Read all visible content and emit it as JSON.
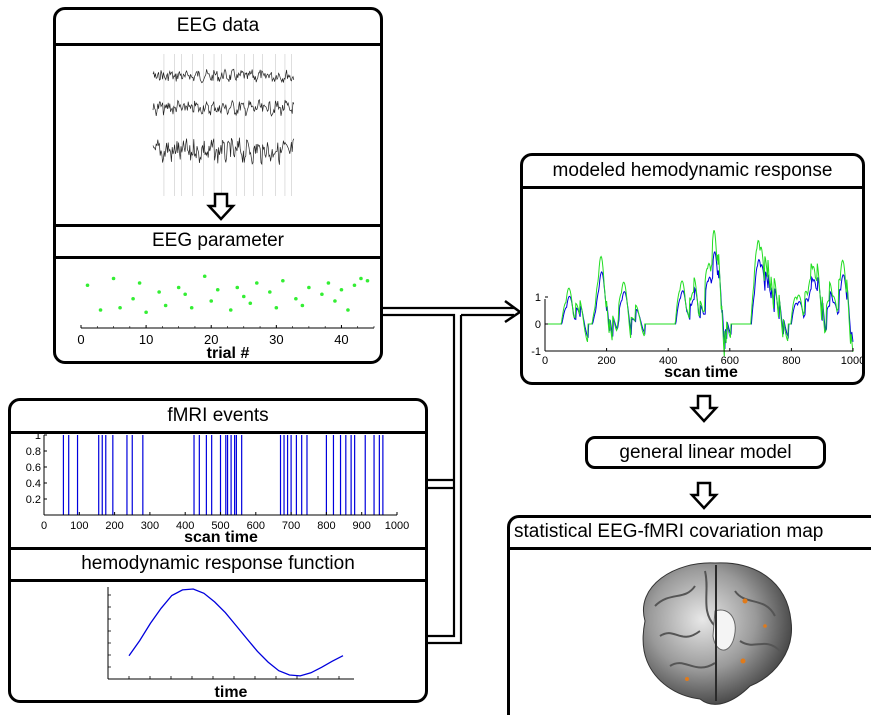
{
  "eeg_panel": {
    "title": "EEG data",
    "param_title": "EEG parameter",
    "trial_axis": {
      "label": "trial #",
      "ticks": [
        "0",
        "10",
        "20",
        "30",
        "40"
      ],
      "range": [
        0,
        45
      ]
    }
  },
  "fmri_panel": {
    "title": "fMRI events",
    "xlabel": "scan time",
    "xticks": [
      "0",
      "100",
      "200",
      "300",
      "400",
      "500",
      "600",
      "700",
      "800",
      "900",
      "1000"
    ],
    "yticks": [
      "0.2",
      "0.4",
      "0.6",
      "0.8",
      "1"
    ],
    "xlim": [
      0,
      1000
    ],
    "ylim": [
      0,
      1
    ]
  },
  "hrf_panel": {
    "title": "hemodynamic response function",
    "xlabel": "time"
  },
  "model_panel": {
    "title": "modeled hemodynamic response",
    "xlabel": "scan time",
    "xticks": [
      "0",
      "200",
      "400",
      "600",
      "800",
      "1000"
    ],
    "yticks": [
      "1",
      "0",
      "-1"
    ],
    "xlim": [
      0,
      1000
    ],
    "ylim": [
      -1,
      1
    ]
  },
  "glm_box": {
    "label": "general linear model"
  },
  "map_panel": {
    "title": "statistical EEG-fMRI covariation map"
  },
  "colors": {
    "eeg_points": "#33ee33",
    "events": "#0000dd",
    "hrf": "#0000dd",
    "model_blue": "#0000dd",
    "model_green": "#22dd22"
  },
  "chart_data": [
    {
      "type": "scatter",
      "name": "EEG parameter",
      "x": [
        1,
        3,
        5,
        6,
        8,
        9,
        10,
        12,
        13,
        15,
        16,
        17,
        19,
        20,
        21,
        23,
        24,
        25,
        26,
        27,
        29,
        30,
        31,
        33,
        34,
        35,
        37,
        38,
        39,
        40,
        41,
        42,
        43,
        44
      ],
      "y": [
        0.75,
        0.2,
        0.9,
        0.25,
        0.45,
        0.8,
        0.15,
        0.6,
        0.3,
        0.7,
        0.55,
        0.25,
        0.95,
        0.4,
        0.65,
        0.2,
        0.7,
        0.5,
        0.35,
        0.8,
        0.6,
        0.25,
        0.85,
        0.45,
        0.3,
        0.7,
        0.55,
        0.8,
        0.4,
        0.65,
        0.2,
        0.75,
        0.9,
        0.85
      ],
      "xlabel": "trial #",
      "xlim": [
        0,
        45
      ]
    },
    {
      "type": "bar",
      "name": "fMRI events",
      "x": [
        55,
        70,
        95,
        155,
        165,
        175,
        195,
        235,
        250,
        280,
        425,
        440,
        460,
        475,
        500,
        515,
        520,
        530,
        540,
        545,
        560,
        670,
        680,
        690,
        700,
        715,
        730,
        745,
        800,
        820,
        840,
        855,
        870,
        880,
        910,
        935,
        950,
        960
      ],
      "values": [
        1,
        1,
        1,
        1,
        1,
        1,
        1,
        1,
        1,
        1,
        1,
        1,
        1,
        1,
        1,
        1,
        1,
        1,
        1,
        1,
        1,
        1,
        1,
        1,
        1,
        1,
        1,
        1,
        1,
        1,
        1,
        1,
        1,
        1,
        1,
        1,
        1,
        1
      ],
      "xlabel": "scan time",
      "xlim": [
        0,
        1000
      ],
      "ylim": [
        0,
        1
      ]
    },
    {
      "type": "line",
      "name": "hemodynamic response function",
      "x": [
        0,
        0.05,
        0.1,
        0.15,
        0.2,
        0.25,
        0.3,
        0.35,
        0.4,
        0.45,
        0.5,
        0.55,
        0.6,
        0.65,
        0.7,
        0.75,
        0.8,
        0.85,
        0.9,
        0.95,
        1
      ],
      "y": [
        -0.55,
        -0.2,
        0.2,
        0.55,
        0.85,
        0.98,
        1,
        0.9,
        0.7,
        0.45,
        0.15,
        -0.15,
        -0.45,
        -0.7,
        -0.9,
        -1,
        -1.02,
        -0.95,
        -0.82,
        -0.68,
        -0.55
      ],
      "xlabel": "time"
    },
    {
      "type": "line",
      "name": "modeled hemodynamic response",
      "xlabel": "scan time",
      "xlim": [
        0,
        1000
      ],
      "ylim": [
        -1,
        1
      ]
    }
  ]
}
